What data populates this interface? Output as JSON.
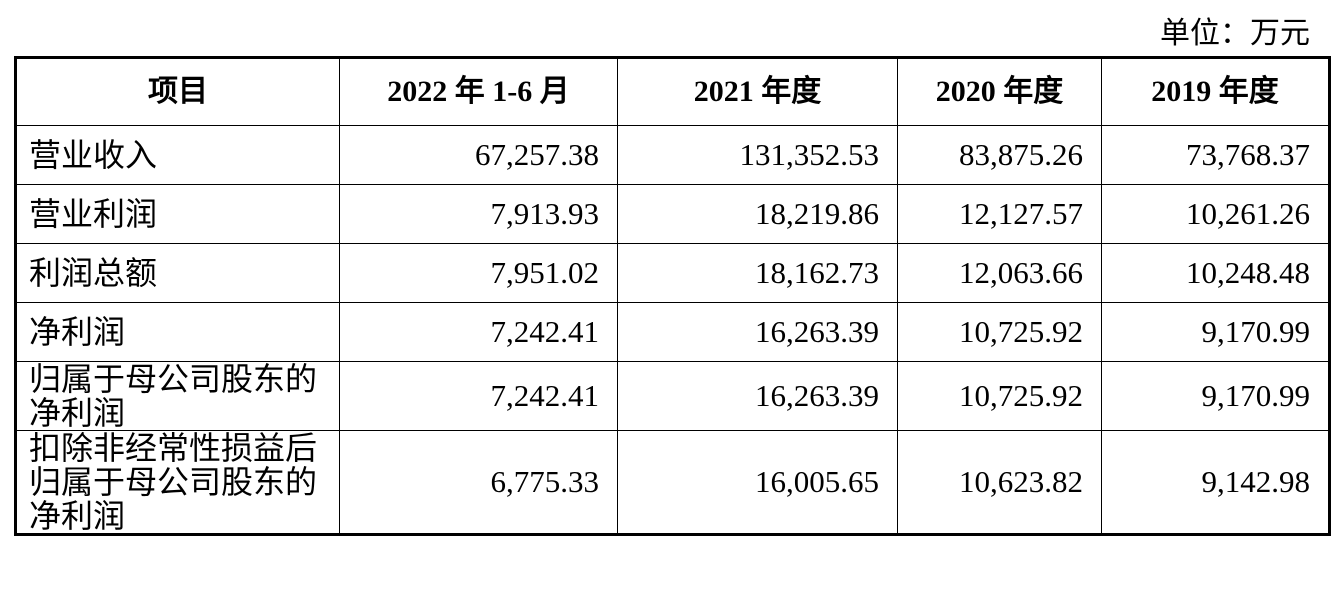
{
  "unit": "单位：万元",
  "table": {
    "header": [
      "项目",
      "2022 年 1-6 月",
      "2021 年度",
      "2020 年度",
      "2019 年度"
    ],
    "rows": [
      [
        "营业收入",
        "67,257.38",
        "131,352.53",
        "83,875.26",
        "73,768.37"
      ],
      [
        "营业利润",
        "7,913.93",
        "18,219.86",
        "12,127.57",
        "10,261.26"
      ],
      [
        "利润总额",
        "7,951.02",
        "18,162.73",
        "12,063.66",
        "10,248.48"
      ],
      [
        "净利润",
        "7,242.41",
        "16,263.39",
        "10,725.92",
        "9,170.99"
      ],
      [
        "归属于母公司股东的净利润",
        "7,242.41",
        "16,263.39",
        "10,725.92",
        "9,170.99"
      ],
      [
        "扣除非经常性损益后归属于母公司股东的净利润",
        "6,775.33",
        "16,005.65",
        "10,623.82",
        "9,142.98"
      ]
    ]
  }
}
